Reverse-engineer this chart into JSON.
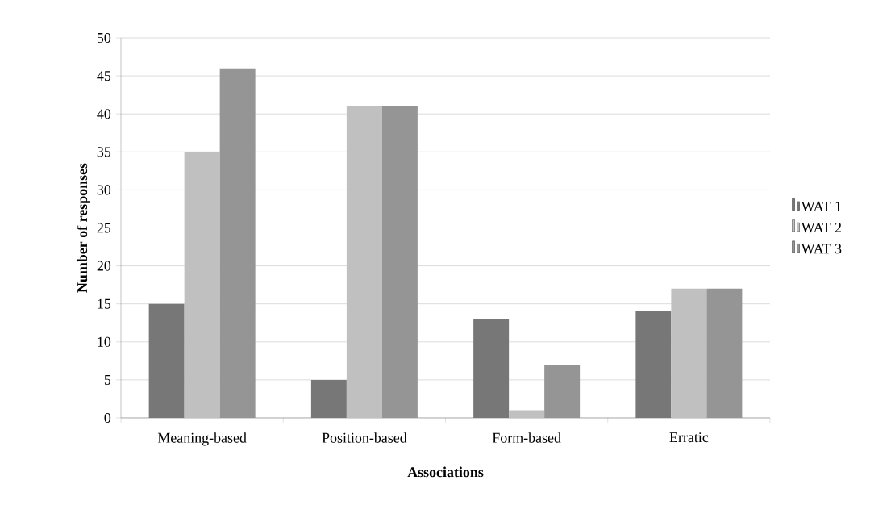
{
  "chart_data": {
    "type": "bar",
    "xlabel": "Associations",
    "ylabel": "Number of responses",
    "categories": [
      "Meaning-based",
      "Position-based",
      "Form-based",
      "Erratic"
    ],
    "series": [
      {
        "name": "WAT 1",
        "color": "#777777",
        "values": [
          15,
          5,
          13,
          14
        ]
      },
      {
        "name": "WAT 2",
        "color": "#c0c0c0",
        "values": [
          35,
          41,
          1,
          17
        ]
      },
      {
        "name": "WAT 3",
        "color": "#959595",
        "values": [
          46,
          41,
          7,
          17
        ]
      }
    ],
    "ylim": [
      0,
      50
    ],
    "yticks": [
      0,
      5,
      10,
      15,
      20,
      25,
      30,
      35,
      40,
      45,
      50
    ],
    "grid": "y",
    "legend": "right"
  }
}
